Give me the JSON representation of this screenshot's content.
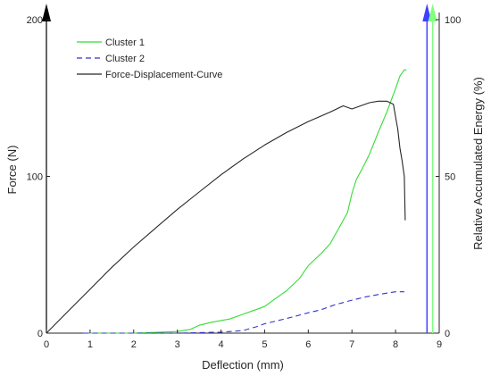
{
  "chart_data": {
    "type": "line",
    "xlabel": "Deflection (mm)",
    "ylabel": "Force (N)",
    "y2label": "Relative Accumulated Energy (%)",
    "xlim": [
      0,
      9
    ],
    "ylim": [
      0,
      200
    ],
    "y2lim": [
      0,
      100
    ],
    "x_ticks": [
      0,
      1,
      2,
      3,
      4,
      5,
      6,
      7,
      8,
      9
    ],
    "y_ticks": [
      0,
      100,
      200
    ],
    "y2_ticks": [
      0,
      50,
      100
    ],
    "grid": false,
    "legend_position": "top-left",
    "colors": {
      "axis": "#262626",
      "force_axis": "#000000",
      "cluster1_axis": "#80ff80",
      "cluster2_axis": "#4040ff"
    },
    "markers": {
      "cluster2_axis_x": 8.72,
      "cluster1_axis_x": 8.85
    },
    "series": [
      {
        "name": "Cluster 1",
        "axis": "right",
        "color": "#33dd33",
        "dash": "solid",
        "x": [
          0.85,
          2.0,
          3.0,
          3.3,
          3.5,
          3.8,
          4.2,
          4.5,
          4.8,
          5.0,
          5.2,
          5.5,
          5.8,
          6.0,
          6.3,
          6.5,
          6.7,
          6.9,
          7.0,
          7.1,
          7.2,
          7.4,
          7.6,
          7.8,
          8.0,
          8.1,
          8.2,
          8.25
        ],
        "values": [
          0,
          0,
          0.5,
          1.2,
          2.5,
          3.5,
          4.5,
          6.0,
          7.5,
          8.5,
          10.5,
          13.5,
          17.5,
          21.5,
          25.5,
          28.5,
          33.5,
          38.5,
          44.5,
          49.0,
          51.5,
          57.0,
          64.0,
          70.5,
          78.0,
          82.0,
          84.0,
          84.0
        ]
      },
      {
        "name": "Cluster 2",
        "axis": "right",
        "color": "#3333cc",
        "dash": "dashed",
        "x": [
          0.85,
          2.0,
          3.0,
          4.0,
          4.5,
          4.8,
          5.0,
          5.3,
          5.6,
          6.0,
          6.3,
          6.6,
          7.0,
          7.3,
          7.6,
          7.9,
          8.0,
          8.2
        ],
        "values": [
          0,
          0,
          0,
          0.3,
          0.8,
          2.0,
          3.0,
          4.0,
          5.0,
          6.5,
          7.5,
          9.0,
          10.5,
          11.5,
          12.3,
          13.0,
          13.2,
          13.2
        ]
      },
      {
        "name": "Force-Displacement-Curve",
        "axis": "left",
        "color": "#262626",
        "dash": "solid",
        "x": [
          0,
          0.5,
          1.0,
          1.5,
          2.0,
          2.5,
          3.0,
          3.5,
          4.0,
          4.5,
          5.0,
          5.5,
          6.0,
          6.5,
          6.8,
          7.0,
          7.2,
          7.4,
          7.6,
          7.8,
          7.95,
          8.0,
          8.05,
          8.1,
          8.15,
          8.2,
          8.22
        ],
        "values": [
          0,
          14,
          28,
          42,
          55,
          67,
          79,
          90,
          101,
          111,
          120,
          128,
          135,
          141,
          145,
          143,
          145,
          147,
          148,
          148,
          146,
          138,
          130,
          118,
          110,
          100,
          72
        ]
      }
    ]
  }
}
